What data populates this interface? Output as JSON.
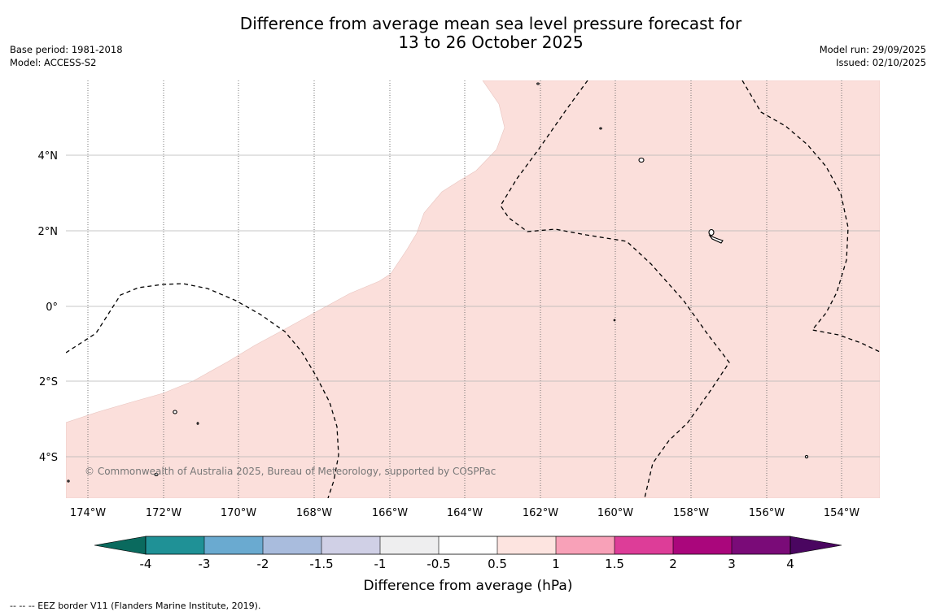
{
  "title": {
    "line1": "Difference from average mean sea level pressure forecast for",
    "line2": "13 to 26 October 2025"
  },
  "meta_left": {
    "base_period": "Base period: 1981-2018",
    "model": "Model: ACCESS-S2"
  },
  "meta_right": {
    "model_run": "Model run: 29/09/2025",
    "issued": "Issued: 02/10/2025"
  },
  "map": {
    "lon_labels": [
      "174°W",
      "172°W",
      "170°W",
      "168°W",
      "166°W",
      "164°W",
      "162°W",
      "160°W",
      "158°W",
      "156°W",
      "154°W"
    ],
    "lat_labels": [
      "4°N",
      "2°N",
      "0°",
      "2°S",
      "4°S"
    ],
    "copyright": "© Commonwealth of Australia 2025, Bureau of Meteorology, supported by COSPPac",
    "anomaly_fill_color": "#fbdfdb",
    "no_anomaly_color": "#ffffff"
  },
  "colorbar": {
    "title": "Difference from average (hPa)",
    "tick_labels": [
      "-4",
      "-3",
      "-2",
      "-1.5",
      "-1",
      "-0.5",
      "0.5",
      "1",
      "1.5",
      "2",
      "3",
      "4"
    ],
    "colors": [
      "#0a6a5e",
      "#1f9196",
      "#6aaad0",
      "#a9bcdd",
      "#d0d0e6",
      "#eeeeef",
      "#ffffff",
      "#fde4e0",
      "#f8a1b8",
      "#dd3d98",
      "#aa067c",
      "#7a0b78",
      "#4a0660"
    ]
  },
  "footnote": "--  --  -- EEZ border V11 (Flanders Marine Institute, 2019)."
}
